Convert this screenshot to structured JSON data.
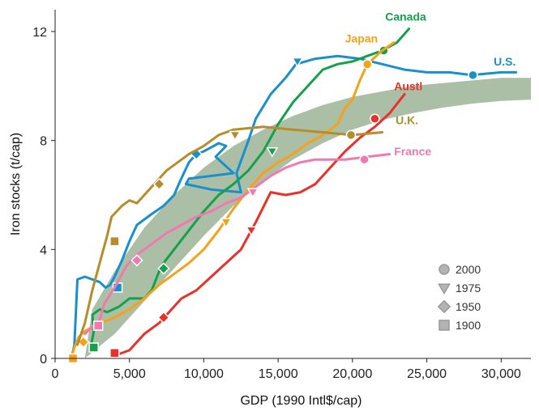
{
  "chart_data": {
    "type": "line",
    "xlabel": "GDP (1990 Intl$/cap)",
    "ylabel": "Iron stocks (t/cap)",
    "xlim": [
      0,
      32000
    ],
    "ylim": [
      0,
      12.8
    ],
    "x_ticks": [
      0,
      5000,
      10000,
      15000,
      20000,
      25000,
      30000
    ],
    "x_tick_labels": [
      "0",
      "5,000",
      "10,000",
      "15,000",
      "20,000",
      "25,000",
      "30,000"
    ],
    "y_ticks": [
      0,
      4,
      8,
      12
    ],
    "y_tick_labels": [
      "0",
      "4",
      "8",
      "12"
    ],
    "band": {
      "color": "#8faa8a",
      "upper": [
        [
          2500,
          1.8
        ],
        [
          4000,
          3.2
        ],
        [
          6000,
          4.8
        ],
        [
          8000,
          6.0
        ],
        [
          10000,
          7.0
        ],
        [
          12000,
          7.8
        ],
        [
          14000,
          8.4
        ],
        [
          16000,
          8.9
        ],
        [
          18000,
          9.3
        ],
        [
          20000,
          9.6
        ],
        [
          22000,
          9.8
        ],
        [
          24000,
          10.0
        ],
        [
          26000,
          10.1
        ],
        [
          28000,
          10.2
        ],
        [
          30000,
          10.3
        ],
        [
          32000,
          10.3
        ]
      ],
      "lower": [
        [
          32000,
          9.5
        ],
        [
          30000,
          9.45
        ],
        [
          28000,
          9.35
        ],
        [
          26000,
          9.2
        ],
        [
          24000,
          9.0
        ],
        [
          22000,
          8.75
        ],
        [
          20000,
          8.4
        ],
        [
          18000,
          7.9
        ],
        [
          16000,
          7.3
        ],
        [
          14000,
          6.5
        ],
        [
          12000,
          5.6
        ],
        [
          10000,
          4.5
        ],
        [
          8000,
          3.3
        ],
        [
          6000,
          2.1
        ],
        [
          4000,
          0.9
        ],
        [
          2000,
          0.0
        ]
      ]
    },
    "series": [
      {
        "name": "U.S.",
        "color": "#1b8fcc",
        "label_pos": [
          29500,
          10.75
        ],
        "points": [
          [
            1100,
            0
          ],
          [
            1300,
            0.5
          ],
          [
            1500,
            2.9
          ],
          [
            2000,
            3.0
          ],
          [
            2500,
            2.9
          ],
          [
            3000,
            2.8
          ],
          [
            3400,
            2.6
          ],
          [
            3700,
            2.7
          ],
          [
            4000,
            3.0
          ],
          [
            4500,
            3.6
          ],
          [
            5000,
            4.3
          ],
          [
            5500,
            4.9
          ],
          [
            6500,
            5.3
          ],
          [
            7300,
            5.6
          ],
          [
            8000,
            6.0
          ],
          [
            8400,
            6.5
          ],
          [
            9000,
            7.2
          ],
          [
            9500,
            7.5
          ],
          [
            10000,
            7.6
          ],
          [
            11000,
            7.9
          ],
          [
            11500,
            7.8
          ],
          [
            10800,
            7.4
          ],
          [
            12000,
            6.8
          ],
          [
            9000,
            6.6
          ],
          [
            8800,
            6.4
          ],
          [
            10500,
            6.2
          ],
          [
            12500,
            6.1
          ],
          [
            12200,
            6.8
          ],
          [
            13000,
            8.0
          ],
          [
            13500,
            8.8
          ],
          [
            14500,
            9.7
          ],
          [
            15500,
            10.3
          ],
          [
            16200,
            10.8
          ],
          [
            17500,
            11.0
          ],
          [
            19000,
            11.1
          ],
          [
            20500,
            11.0
          ],
          [
            22000,
            10.8
          ],
          [
            23500,
            10.6
          ],
          [
            25000,
            10.5
          ],
          [
            26500,
            10.5
          ],
          [
            28000,
            10.4
          ],
          [
            30000,
            10.5
          ],
          [
            31000,
            10.5
          ]
        ],
        "markers": [
          {
            "year": "1900",
            "x": 4200,
            "y": 2.6
          },
          {
            "year": "1950",
            "x": 9500,
            "y": 7.5
          },
          {
            "year": "1975",
            "x": 16300,
            "y": 10.9
          },
          {
            "year": "2000",
            "x": 28100,
            "y": 10.4
          }
        ]
      },
      {
        "name": "Canada",
        "color": "#17a04c",
        "label_pos": [
          22200,
          12.4
        ],
        "points": [
          [
            2400,
            0.4
          ],
          [
            2600,
            1.0
          ],
          [
            2500,
            1.6
          ],
          [
            3000,
            1.8
          ],
          [
            3500,
            1.7
          ],
          [
            4300,
            1.9
          ],
          [
            5000,
            2.2
          ],
          [
            6000,
            2.2
          ],
          [
            6500,
            2.5
          ],
          [
            7000,
            3.2
          ],
          [
            7300,
            3.5
          ],
          [
            8000,
            4.0
          ],
          [
            9000,
            4.7
          ],
          [
            10000,
            5.4
          ],
          [
            11000,
            6.0
          ],
          [
            12000,
            6.4
          ],
          [
            13000,
            6.9
          ],
          [
            14000,
            7.6
          ],
          [
            15000,
            8.6
          ],
          [
            16000,
            9.4
          ],
          [
            17000,
            10.0
          ],
          [
            18000,
            10.6
          ],
          [
            19000,
            10.8
          ],
          [
            20000,
            10.9
          ],
          [
            21000,
            11.1
          ],
          [
            22000,
            11.3
          ],
          [
            23000,
            11.6
          ],
          [
            23800,
            12.1
          ]
        ],
        "markers": [
          {
            "year": "1900",
            "x": 2600,
            "y": 0.4
          },
          {
            "year": "1950",
            "x": 7300,
            "y": 3.3
          },
          {
            "year": "1975",
            "x": 14600,
            "y": 7.6
          },
          {
            "year": "2000",
            "x": 22100,
            "y": 11.3
          }
        ]
      },
      {
        "name": "Japan",
        "color": "#f5a21b",
        "label_pos": [
          19500,
          11.6
        ],
        "points": [
          [
            1100,
            0
          ],
          [
            1300,
            0.4
          ],
          [
            1600,
            0.8
          ],
          [
            2000,
            1.0
          ],
          [
            3000,
            1.3
          ],
          [
            4000,
            1.5
          ],
          [
            5000,
            1.8
          ],
          [
            6000,
            2.2
          ],
          [
            7000,
            2.7
          ],
          [
            8000,
            3.1
          ],
          [
            9000,
            3.5
          ],
          [
            10000,
            4.0
          ],
          [
            11000,
            4.7
          ],
          [
            12000,
            5.5
          ],
          [
            13000,
            6.2
          ],
          [
            14000,
            6.8
          ],
          [
            15000,
            7.2
          ],
          [
            16000,
            7.5
          ],
          [
            17000,
            7.9
          ],
          [
            18000,
            8.2
          ],
          [
            19000,
            8.6
          ],
          [
            19500,
            9.2
          ],
          [
            20000,
            9.5
          ],
          [
            20500,
            10.2
          ],
          [
            21000,
            10.8
          ],
          [
            22000,
            11.3
          ],
          [
            22800,
            11.6
          ]
        ],
        "markers": [
          {
            "year": "1900",
            "x": 1200,
            "y": 0
          },
          {
            "year": "1950",
            "x": 1900,
            "y": 0.6
          },
          {
            "year": "1975",
            "x": 11500,
            "y": 5.0
          },
          {
            "year": "2000",
            "x": 21000,
            "y": 10.8
          }
        ]
      },
      {
        "name": "Austl",
        "color": "#e8312b",
        "label_pos": [
          22800,
          9.85
        ],
        "points": [
          [
            4000,
            0.1
          ],
          [
            5000,
            0.3
          ],
          [
            5500,
            0.6
          ],
          [
            6000,
            0.9
          ],
          [
            7000,
            1.3
          ],
          [
            7500,
            1.6
          ],
          [
            8500,
            2.2
          ],
          [
            9500,
            2.5
          ],
          [
            10500,
            3.0
          ],
          [
            11500,
            3.5
          ],
          [
            12500,
            4.0
          ],
          [
            13500,
            5.0
          ],
          [
            14500,
            6.1
          ],
          [
            15500,
            6.0
          ],
          [
            16500,
            6.1
          ],
          [
            17500,
            6.4
          ],
          [
            18500,
            7.0
          ],
          [
            19500,
            7.6
          ],
          [
            20500,
            8.1
          ],
          [
            21500,
            8.5
          ],
          [
            22500,
            9.0
          ],
          [
            23500,
            9.7
          ]
        ],
        "markers": [
          {
            "year": "1900",
            "x": 4000,
            "y": 0.2
          },
          {
            "year": "1950",
            "x": 7300,
            "y": 1.5
          },
          {
            "year": "1975",
            "x": 13200,
            "y": 4.7
          },
          {
            "year": "2000",
            "x": 21500,
            "y": 8.8
          }
        ]
      },
      {
        "name": "U.K.",
        "color": "#b58d2c",
        "label_pos": [
          22900,
          8.6
        ],
        "points": [
          [
            1500,
            0.5
          ],
          [
            2000,
            1.3
          ],
          [
            2500,
            2.5
          ],
          [
            3000,
            3.5
          ],
          [
            3500,
            4.5
          ],
          [
            3800,
            5.2
          ],
          [
            4500,
            5.6
          ],
          [
            5000,
            5.8
          ],
          [
            5500,
            5.7
          ],
          [
            6000,
            6.0
          ],
          [
            6500,
            6.3
          ],
          [
            7000,
            6.6
          ],
          [
            7500,
            6.9
          ],
          [
            8000,
            7.1
          ],
          [
            9000,
            7.5
          ],
          [
            10000,
            7.8
          ],
          [
            11000,
            8.2
          ],
          [
            12000,
            8.4
          ],
          [
            14000,
            8.5
          ],
          [
            16000,
            8.4
          ],
          [
            18000,
            8.3
          ],
          [
            20000,
            8.2
          ],
          [
            22000,
            8.3
          ]
        ],
        "markers": [
          {
            "year": "1900",
            "x": 4000,
            "y": 4.3
          },
          {
            "year": "1950",
            "x": 7000,
            "y": 6.4
          },
          {
            "year": "1975",
            "x": 12100,
            "y": 8.2
          },
          {
            "year": "2000",
            "x": 19900,
            "y": 8.2
          }
        ]
      },
      {
        "name": "France",
        "color": "#f07aaf",
        "label_pos": [
          22800,
          7.45
        ],
        "points": [
          [
            2000,
            0.9
          ],
          [
            3000,
            1.4
          ],
          [
            3300,
            2.0
          ],
          [
            4000,
            2.6
          ],
          [
            4800,
            3.4
          ],
          [
            5500,
            3.8
          ],
          [
            6500,
            4.2
          ],
          [
            7500,
            4.6
          ],
          [
            8500,
            4.9
          ],
          [
            9500,
            5.2
          ],
          [
            10500,
            5.4
          ],
          [
            11500,
            5.7
          ],
          [
            12500,
            5.9
          ],
          [
            13500,
            6.3
          ],
          [
            14500,
            6.7
          ],
          [
            15500,
            7.0
          ],
          [
            16500,
            7.2
          ],
          [
            17500,
            7.3
          ],
          [
            18500,
            7.3
          ],
          [
            19500,
            7.3
          ],
          [
            21000,
            7.4
          ],
          [
            22500,
            7.5
          ]
        ],
        "markers": [
          {
            "year": "1900",
            "x": 2900,
            "y": 1.2
          },
          {
            "year": "1950",
            "x": 5500,
            "y": 3.6
          },
          {
            "year": "1975",
            "x": 13300,
            "y": 6.1
          },
          {
            "year": "2000",
            "x": 20800,
            "y": 7.3
          }
        ]
      }
    ],
    "legend": {
      "placement": "bottom-right",
      "items": [
        {
          "shape": "circle",
          "label": "2000"
        },
        {
          "shape": "triangle-down",
          "label": "1975"
        },
        {
          "shape": "diamond",
          "label": "1950"
        },
        {
          "shape": "square",
          "label": "1900"
        }
      ]
    }
  }
}
